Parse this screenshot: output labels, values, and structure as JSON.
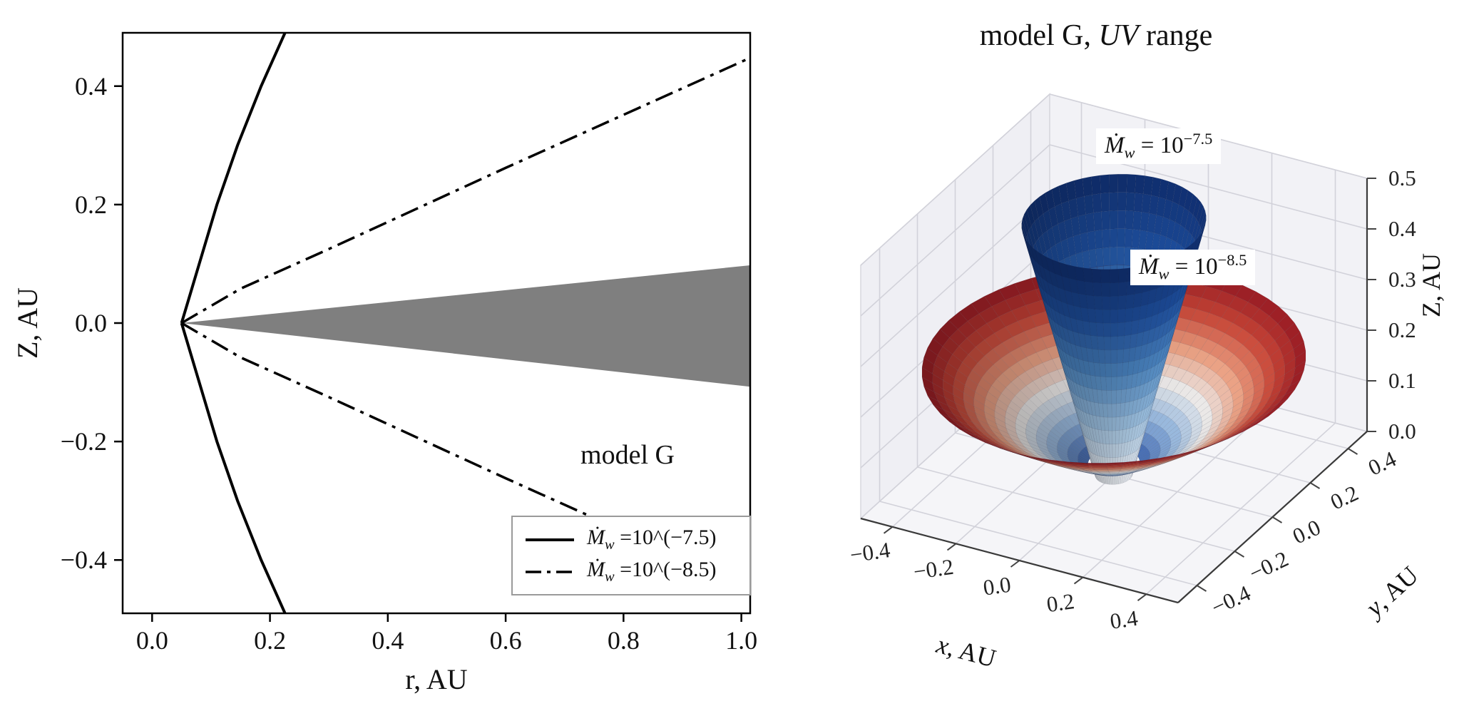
{
  "figure": {
    "background": "#ffffff"
  },
  "chart_data": [
    {
      "type": "line",
      "title": "",
      "xlabel": "r, AU",
      "ylabel": "Z, AU",
      "xlim": [
        -0.05,
        1.015
      ],
      "ylim": [
        -0.49,
        0.49
      ],
      "xticks": [
        0.0,
        0.2,
        0.4,
        0.6,
        0.8,
        1.0
      ],
      "yticks": [
        -0.4,
        -0.2,
        0.0,
        0.2,
        0.4
      ],
      "xtick_labels": [
        "0.0",
        "0.2",
        "0.4",
        "0.6",
        "0.8",
        "1.0"
      ],
      "ytick_labels": [
        "−0.4",
        "−0.2",
        "0.0",
        "0.2",
        "0.4"
      ],
      "grid": false,
      "annotation": {
        "text": "model G",
        "x": 0.8,
        "y": -0.22
      },
      "legend_position": "lower right",
      "legend": [
        {
          "style": "solid",
          "prefix": "Ṁ",
          "sub": "w",
          "rest": " =10^(−7.5)"
        },
        {
          "style": "dashdot",
          "prefix": "Ṁ",
          "sub": "w",
          "rest": " =10^(−8.5)"
        }
      ],
      "series": [
        {
          "name": "wind-surface-Mw-1e-7.5-upper",
          "style": "solid",
          "color": "#000000",
          "points": [
            [
              0.05,
              0.0
            ],
            [
              0.065,
              0.05
            ],
            [
              0.08,
              0.1
            ],
            [
              0.11,
              0.2
            ],
            [
              0.145,
              0.3
            ],
            [
              0.185,
              0.4
            ],
            [
              0.23,
              0.5
            ],
            [
              0.245,
              0.53
            ]
          ]
        },
        {
          "name": "wind-surface-Mw-1e-7.5-lower",
          "style": "solid",
          "color": "#000000",
          "points": [
            [
              0.05,
              0.0
            ],
            [
              0.065,
              -0.05
            ],
            [
              0.08,
              -0.1
            ],
            [
              0.11,
              -0.2
            ],
            [
              0.145,
              -0.3
            ],
            [
              0.185,
              -0.4
            ],
            [
              0.23,
              -0.5
            ],
            [
              0.245,
              -0.53
            ]
          ]
        },
        {
          "name": "wind-surface-Mw-1e-8.5-upper",
          "style": "dashdot",
          "color": "#000000",
          "points": [
            [
              0.05,
              0.0
            ],
            [
              0.15,
              0.058
            ],
            [
              0.3,
              0.125
            ],
            [
              0.6,
              0.262
            ],
            [
              1.02,
              0.45
            ]
          ]
        },
        {
          "name": "wind-surface-Mw-1e-8.5-lower",
          "style": "dashdot",
          "color": "#000000",
          "points": [
            [
              0.05,
              0.0
            ],
            [
              0.15,
              -0.058
            ],
            [
              0.3,
              -0.125
            ],
            [
              0.6,
              -0.262
            ],
            [
              1.02,
              -0.45
            ]
          ]
        }
      ],
      "disk_region": {
        "name": "disk-wedge",
        "color": "#7f7f7f",
        "vertices": [
          [
            0.05,
            0.0
          ],
          [
            1.02,
            0.098
          ],
          [
            1.02,
            -0.108
          ]
        ]
      }
    },
    {
      "type": "surface3d",
      "title_parts": {
        "pre": "model G, ",
        "italic": "UV",
        "post": " range"
      },
      "xlabel_parts": {
        "it": "x",
        "rest": ", AU"
      },
      "ylabel_parts": {
        "it": "y",
        "rest": ", AU"
      },
      "zlabel": "Z, AU",
      "xlim": [
        -0.5,
        0.5
      ],
      "ylim": [
        -0.5,
        0.5
      ],
      "zlim": [
        0.0,
        0.5
      ],
      "xticks": [
        -0.4,
        -0.2,
        0.0,
        0.2,
        0.4
      ],
      "yticks": [
        -0.4,
        -0.2,
        0.0,
        0.2,
        0.4
      ],
      "zticks": [
        0.0,
        0.1,
        0.2,
        0.3,
        0.4,
        0.5
      ],
      "xtick_labels": [
        "−0.4",
        "−0.2",
        "0.0",
        "0.2",
        "0.4"
      ],
      "ytick_labels": [
        "−0.4",
        "−0.2",
        "0.0",
        "0.2",
        "0.4"
      ],
      "ztick_labels": [
        "0.0",
        "0.1",
        "0.2",
        "0.3",
        "0.4",
        "0.5"
      ],
      "annotations": [
        {
          "prefix": "Ṁ",
          "sub": "w",
          "mid": " = 10",
          "sup": "−7.5"
        },
        {
          "prefix": "Ṁ",
          "sub": "w",
          "mid": " = 10",
          "sup": "−8.5"
        }
      ],
      "surfaces": [
        {
          "name": "wind-cone-Mw-1e-7.5",
          "shape": "funnel",
          "r_base": 0.05,
          "r_top": 0.25,
          "z_range": [
            0.0,
            0.5
          ],
          "colors": [
            "#fcfdff",
            "#aacdeb",
            "#508cc8",
            "#1e50a0",
            "#0f2d6e"
          ]
        },
        {
          "name": "wind-flare-Mw-1e-8.5",
          "shape": "flare",
          "r_in": 0.07,
          "r_out": 0.52,
          "z_slope": 0.45,
          "colors": [
            "#3c64af",
            "#91b4dc",
            "#ebebeb",
            "#eba082",
            "#c84637",
            "#961923"
          ]
        }
      ]
    }
  ]
}
